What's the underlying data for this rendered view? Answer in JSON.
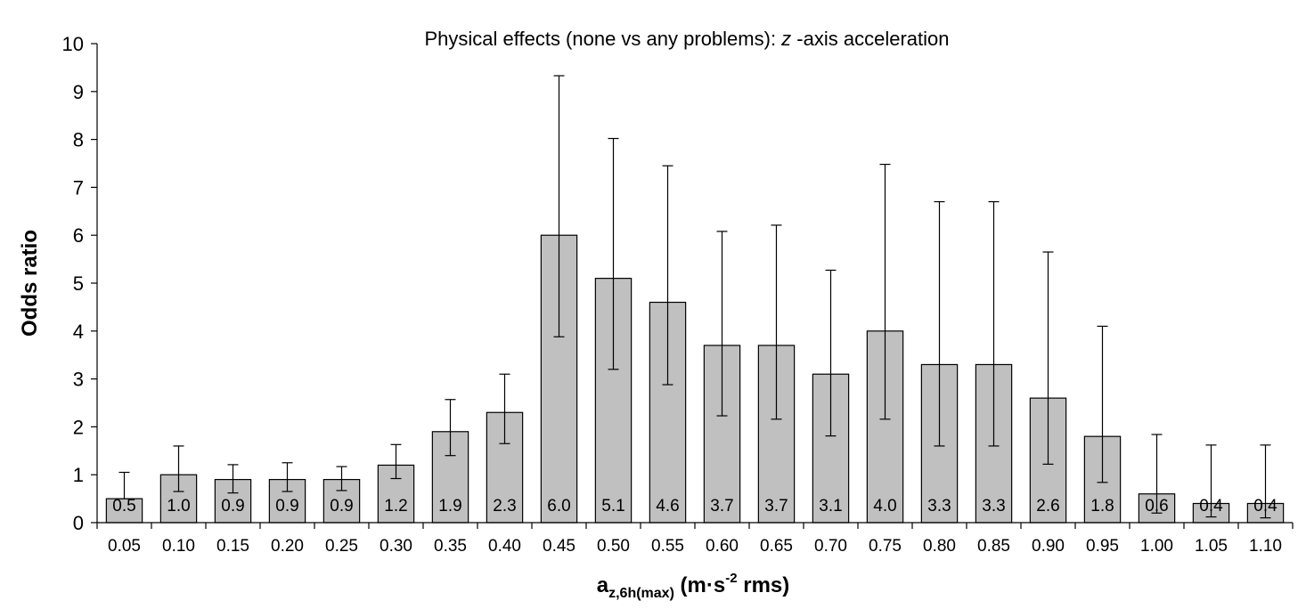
{
  "chart_data": {
    "type": "bar",
    "title": "Physical effects (none vs any problems): ",
    "title_italic": "z",
    "title_suffix": " -axis acceleration",
    "ylabel": "Odds ratio",
    "xlabel": {
      "main": "a",
      "subscript": "z,6h(max)",
      "unit_prefix": " (m·s",
      "superscript": "-2",
      "unit_suffix": " rms)"
    },
    "ylim": [
      0,
      10
    ],
    "yticks": [
      "0",
      "1",
      "2",
      "3",
      "4",
      "5",
      "6",
      "7",
      "8",
      "9",
      "10"
    ],
    "categories": [
      "0.05",
      "0.10",
      "0.15",
      "0.20",
      "0.25",
      "0.30",
      "0.35",
      "0.40",
      "0.45",
      "0.50",
      "0.55",
      "0.60",
      "0.65",
      "0.70",
      "0.75",
      "0.80",
      "0.85",
      "0.90",
      "0.95",
      "1.00",
      "1.05",
      "1.10"
    ],
    "values": [
      0.5,
      1.0,
      0.9,
      0.9,
      0.9,
      1.2,
      1.9,
      2.3,
      6.0,
      5.1,
      4.6,
      3.7,
      3.7,
      3.1,
      4.0,
      3.3,
      3.3,
      2.6,
      1.8,
      0.6,
      0.4,
      0.4
    ],
    "labels": [
      "0.5",
      "1.0",
      "0.9",
      "0.9",
      "0.9",
      "1.2",
      "1.9",
      "2.3",
      "6.0",
      "5.1",
      "4.6",
      "3.7",
      "3.7",
      "3.1",
      "4.0",
      "3.3",
      "3.3",
      "2.6",
      "1.8",
      "0.6",
      "0.4",
      "0.4"
    ],
    "ci_low": [
      0.5,
      0.65,
      0.62,
      0.65,
      0.67,
      0.92,
      1.4,
      1.65,
      3.88,
      3.2,
      2.88,
      2.23,
      2.16,
      1.81,
      2.16,
      1.6,
      1.6,
      1.22,
      0.84,
      0.2,
      0.12,
      0.1
    ],
    "ci_high": [
      1.05,
      1.6,
      1.21,
      1.25,
      1.17,
      1.63,
      2.57,
      3.1,
      9.33,
      8.02,
      7.45,
      6.08,
      6.21,
      5.27,
      7.48,
      6.7,
      6.7,
      5.65,
      4.1,
      1.84,
      1.62,
      1.62
    ],
    "bar_color": "#c0c0c0",
    "grid": false,
    "legend": "none"
  }
}
